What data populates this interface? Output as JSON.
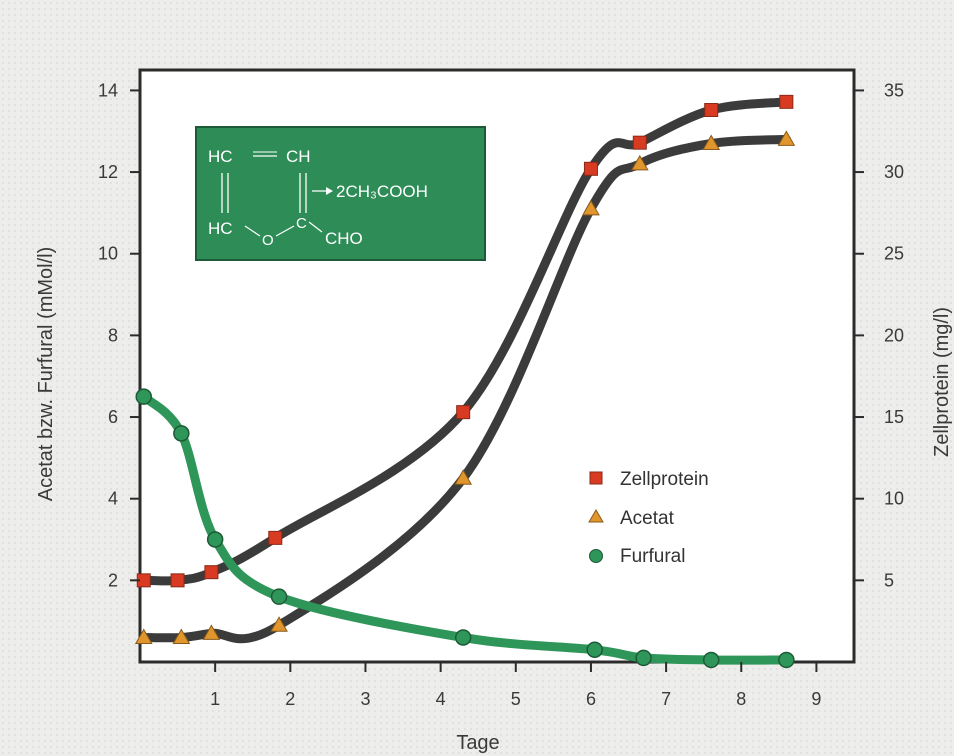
{
  "chart_data": {
    "type": "line",
    "title": "",
    "xlabel": "Tage",
    "ylabel_left": "Acetat bzw. Furfural (mMol/l)",
    "ylabel_right": "Zellprotein (mg/l)",
    "xlim": [
      0,
      9.5
    ],
    "ylim_left": [
      0,
      14.5
    ],
    "ylim_right": [
      0,
      36.25
    ],
    "x_ticks": [
      "1",
      "2",
      "3",
      "4",
      "5",
      "6",
      "7",
      "8",
      "9"
    ],
    "y_left_ticks": [
      "2",
      "4",
      "6",
      "8",
      "10",
      "12",
      "14"
    ],
    "y_right_ticks": [
      "5",
      "10",
      "15",
      "20",
      "25",
      "30",
      "35"
    ],
    "legend_position": "right-middle",
    "colors": {
      "zellprotein": "#d83a22",
      "acetat": "#e0962c",
      "furfural": "#2f9659",
      "curve_dark": "#3b3b3b",
      "curve_green": "#2f9659",
      "formula_box": "#2e8d57"
    },
    "series": [
      {
        "name": "Zellprotein",
        "axis": "right",
        "marker": "square",
        "x": [
          0.05,
          0.5,
          0.95,
          1.8,
          4.3,
          6.0,
          6.65,
          7.6,
          8.6
        ],
        "y": [
          5.0,
          5.0,
          5.5,
          7.6,
          15.3,
          30.2,
          31.8,
          33.8,
          34.3
        ]
      },
      {
        "name": "Acetat",
        "axis": "left",
        "marker": "triangle",
        "x": [
          0.05,
          0.55,
          0.95,
          1.85,
          4.3,
          6.0,
          6.65,
          7.6,
          8.6
        ],
        "y": [
          0.6,
          0.6,
          0.7,
          0.9,
          4.5,
          11.1,
          12.2,
          12.7,
          12.8
        ]
      },
      {
        "name": "Furfural",
        "axis": "left",
        "marker": "circle",
        "x": [
          0.05,
          0.55,
          1.0,
          1.85,
          4.3,
          6.05,
          6.7,
          7.6,
          8.6
        ],
        "y": [
          6.5,
          5.6,
          3.0,
          1.6,
          0.6,
          0.3,
          0.1,
          0.05,
          0.05
        ]
      }
    ],
    "formula": {
      "top_left": "HC",
      "top_right": "CH",
      "product": "2CH₃COOH",
      "bottom_left": "HC",
      "ring_o": "O",
      "ring_c": "C",
      "substituent": "CHO"
    }
  }
}
